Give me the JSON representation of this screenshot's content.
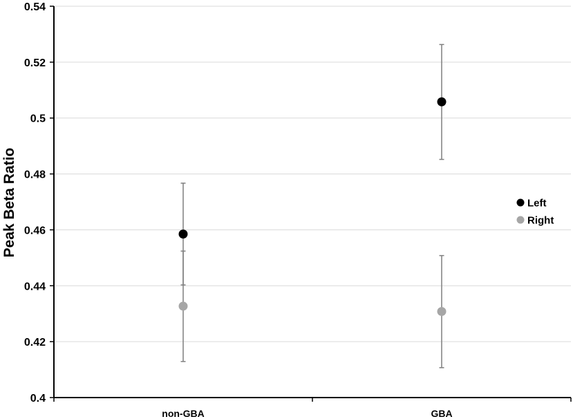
{
  "chart_data": {
    "type": "scatter",
    "title": "",
    "xlabel": "",
    "ylabel": "Peak Beta Ratio",
    "categories": [
      "non-GBA",
      "GBA"
    ],
    "ylim": [
      0.4,
      0.54
    ],
    "yticks": [
      "0.4",
      "0.42",
      "0.44",
      "0.46",
      "0.48",
      "0.5",
      "0.52",
      "0.54"
    ],
    "grid": true,
    "legend_position": "right",
    "series": [
      {
        "name": "Left",
        "color": "#000000",
        "values": [
          0.4585,
          0.5058
        ],
        "error_low": [
          0.4403,
          0.4852
        ],
        "error_high": [
          0.4767,
          0.5263
        ]
      },
      {
        "name": "Right",
        "color": "#a6a6a6",
        "values": [
          0.4327,
          0.4308
        ],
        "error_low": [
          0.4129,
          0.4107
        ],
        "error_high": [
          0.4524,
          0.4508
        ]
      }
    ]
  }
}
